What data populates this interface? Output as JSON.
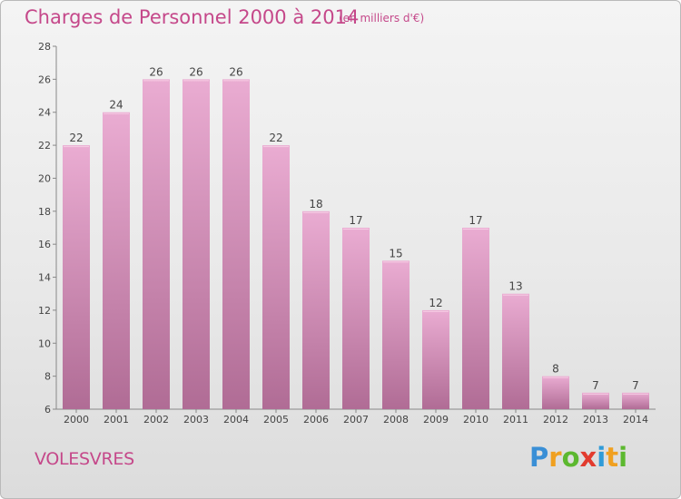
{
  "header": {
    "title": "Charges de Personnel 2000 à 2014",
    "subtitle": "(en milliers d'€)"
  },
  "commune_name": "VOLESVRES",
  "logo": {
    "letters": [
      "P",
      "r",
      "o",
      "x",
      "i",
      "t",
      "i"
    ],
    "colors": [
      "#3a8fd6",
      "#f0a020",
      "#5cb82f",
      "#e23b2e",
      "#2f9bd8",
      "#f0a020",
      "#5cb82f"
    ]
  },
  "colors": {
    "accent": "#c5488a",
    "bar_top": "#e9a9d0",
    "bar_bottom": "#b36d97"
  },
  "chart_data": {
    "type": "bar",
    "title": "Charges de Personnel 2000 à 2014",
    "subtitle": "(en milliers d'€)",
    "categories": [
      "2000",
      "2001",
      "2002",
      "2003",
      "2004",
      "2005",
      "2006",
      "2007",
      "2008",
      "2009",
      "2010",
      "2011",
      "2012",
      "2013",
      "2014"
    ],
    "values": [
      22,
      24,
      26,
      26,
      26,
      22,
      18,
      17,
      15,
      12,
      17,
      13,
      8,
      7,
      7
    ],
    "ylim": [
      6,
      28
    ],
    "yticks": [
      6,
      8,
      10,
      12,
      14,
      16,
      18,
      20,
      22,
      24,
      26,
      28
    ],
    "grid": false,
    "legend": "none"
  }
}
